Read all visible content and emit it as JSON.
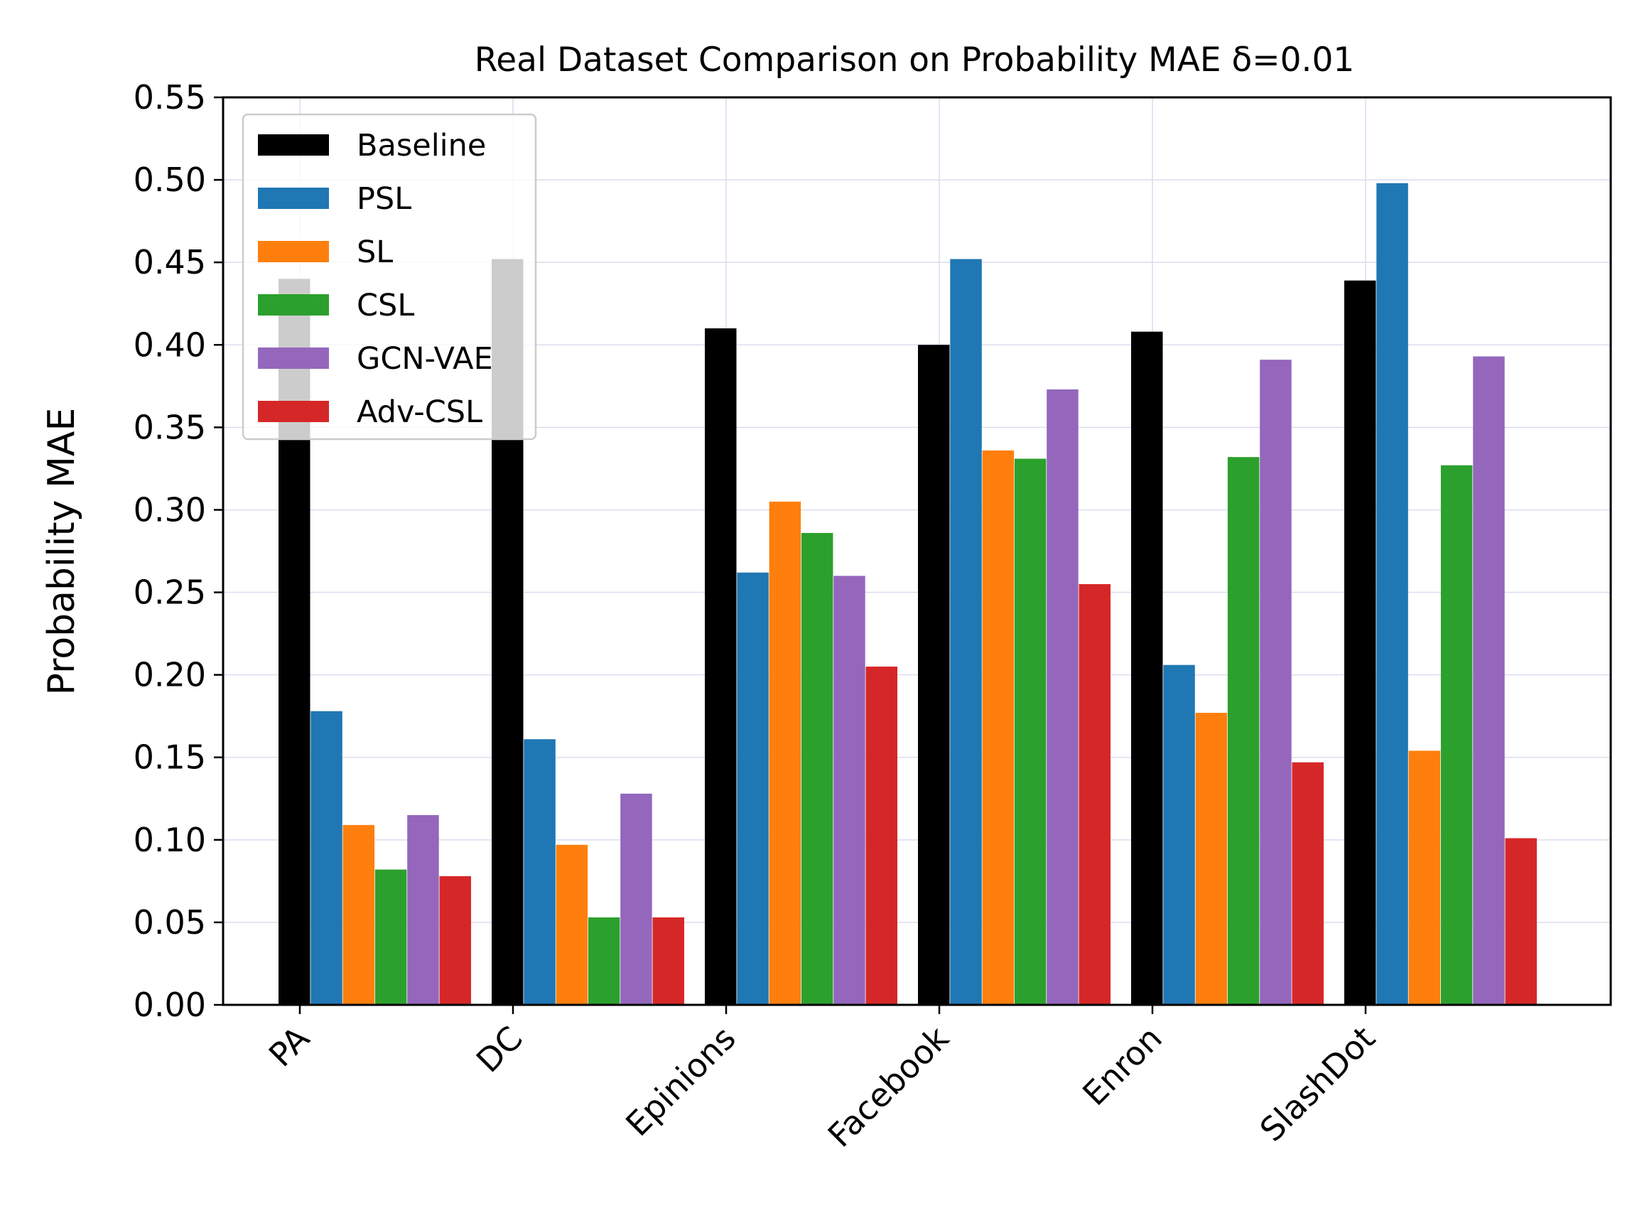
{
  "chart_data": {
    "type": "bar",
    "title": "Real Dataset Comparison on Probability MAE δ=0.01",
    "xlabel": "",
    "ylabel": "Probability MAE",
    "ylim": [
      0,
      0.55
    ],
    "yticks": [
      "0.00",
      "0.05",
      "0.10",
      "0.15",
      "0.20",
      "0.25",
      "0.30",
      "0.35",
      "0.40",
      "0.45",
      "0.50",
      "0.55"
    ],
    "categories": [
      "PA",
      "DC",
      "Epinions",
      "Facebook",
      "Enron",
      "SlashDot"
    ],
    "grid": true,
    "legend_position": "top-left",
    "series": [
      {
        "name": "Baseline",
        "color": "#000000",
        "values": [
          0.44,
          0.452,
          0.41,
          0.4,
          0.408,
          0.439
        ]
      },
      {
        "name": "PSL",
        "color": "#1f77b4",
        "values": [
          0.178,
          0.161,
          0.262,
          0.452,
          0.206,
          0.498
        ]
      },
      {
        "name": "SL",
        "color": "#ff7f0e",
        "values": [
          0.109,
          0.097,
          0.305,
          0.336,
          0.177,
          0.154
        ]
      },
      {
        "name": "CSL",
        "color": "#2ca02c",
        "values": [
          0.082,
          0.053,
          0.286,
          0.331,
          0.332,
          0.327
        ]
      },
      {
        "name": "GCN-VAE",
        "color": "#9467bd",
        "values": [
          0.115,
          0.128,
          0.26,
          0.373,
          0.391,
          0.393
        ]
      },
      {
        "name": "Adv-CSL",
        "color": "#d62728",
        "values": [
          0.078,
          0.053,
          0.205,
          0.255,
          0.147,
          0.101
        ]
      }
    ]
  }
}
